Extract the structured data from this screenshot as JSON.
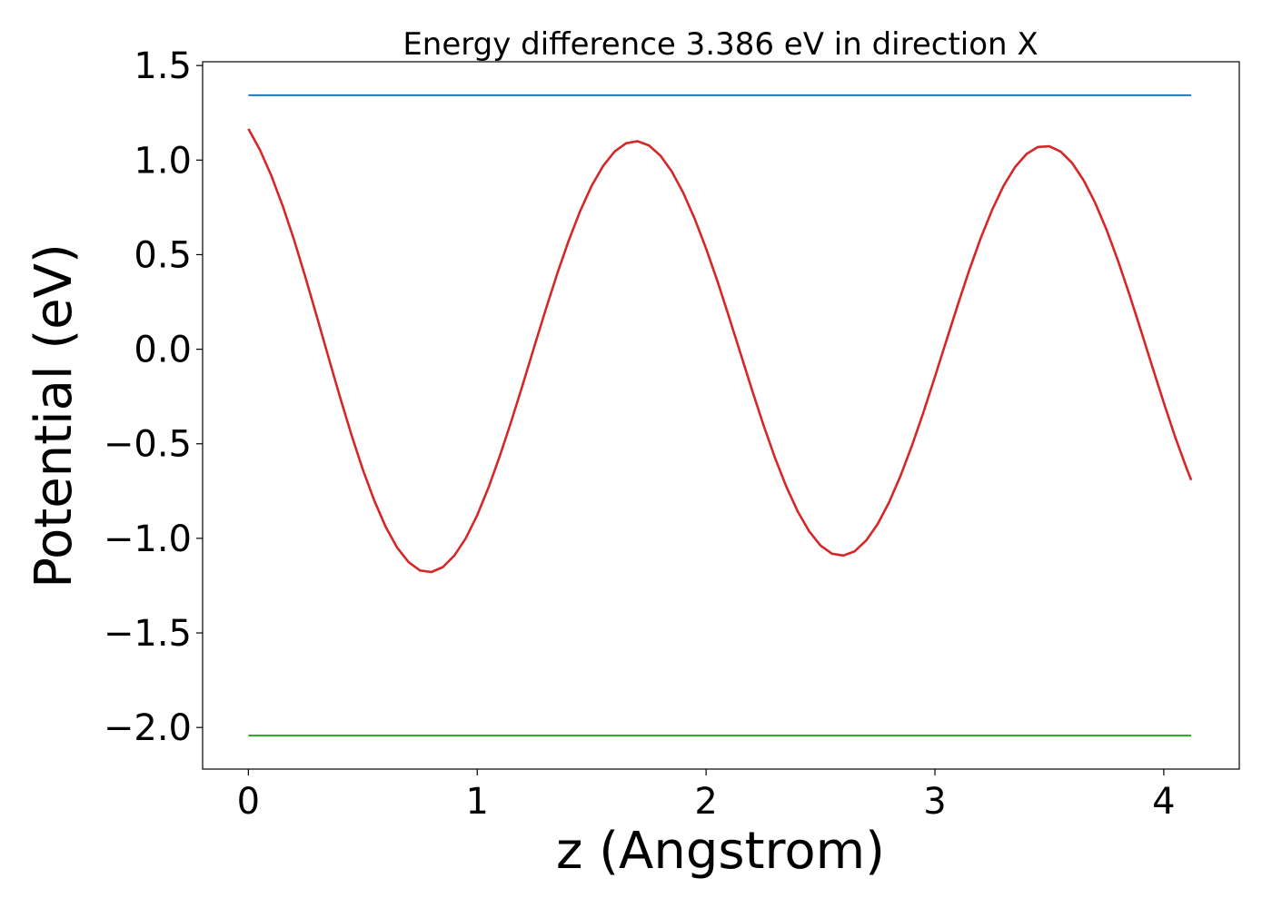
{
  "chart_data": {
    "type": "line",
    "title": "Energy difference 3.386 eV in direction X",
    "xlabel": "z (Angstrom)",
    "ylabel": "Potential (eV)",
    "xlim": [
      -0.2,
      4.33
    ],
    "ylim": [
      -2.22,
      1.52
    ],
    "xticks": [
      0,
      1,
      2,
      3,
      4
    ],
    "xtick_labels": [
      "0",
      "1",
      "2",
      "3",
      "4"
    ],
    "yticks": [
      1.5,
      1.0,
      0.5,
      0.0,
      -0.5,
      -1.0,
      -1.5,
      -2.0
    ],
    "ytick_labels": [
      "1.5",
      "1.0",
      "0.5",
      "0.0",
      "−0.5",
      "−1.0",
      "−1.5",
      "−2.0"
    ],
    "grid": false,
    "series": [
      {
        "color": "#1f77b4",
        "x": [
          0,
          4.12
        ],
        "y": [
          1.343,
          1.343
        ]
      },
      {
        "color": "#d62728",
        "x": [
          0,
          0.05,
          0.1,
          0.15,
          0.2,
          0.25,
          0.3,
          0.35,
          0.4,
          0.45,
          0.5,
          0.55,
          0.6,
          0.65,
          0.7,
          0.75,
          0.8,
          0.85,
          0.9,
          0.95,
          1.0,
          1.05,
          1.1,
          1.15,
          1.2,
          1.25,
          1.3,
          1.35,
          1.4,
          1.45,
          1.5,
          1.55,
          1.6,
          1.65,
          1.7,
          1.75,
          1.8,
          1.85,
          1.9,
          1.95,
          2.0,
          2.05,
          2.1,
          2.15,
          2.2,
          2.25,
          2.3,
          2.35,
          2.4,
          2.45,
          2.5,
          2.55,
          2.6,
          2.65,
          2.7,
          2.75,
          2.8,
          2.85,
          2.9,
          2.95,
          3.0,
          3.05,
          3.1,
          3.15,
          3.2,
          3.25,
          3.3,
          3.35,
          3.4,
          3.45,
          3.5,
          3.55,
          3.6,
          3.65,
          3.7,
          3.75,
          3.8,
          3.85,
          3.9,
          3.95,
          4.0,
          4.05,
          4.1,
          4.12
        ],
        "y": [
          1.165,
          1.055,
          0.918,
          0.757,
          0.576,
          0.378,
          0.17,
          -0.042,
          -0.251,
          -0.451,
          -0.636,
          -0.8,
          -0.939,
          -1.049,
          -1.126,
          -1.17,
          -1.178,
          -1.152,
          -1.091,
          -0.999,
          -0.877,
          -0.73,
          -0.561,
          -0.377,
          -0.183,
          0.016,
          0.212,
          0.401,
          0.575,
          0.731,
          0.864,
          0.969,
          1.045,
          1.089,
          1.1,
          1.078,
          1.024,
          0.94,
          0.828,
          0.691,
          0.533,
          0.359,
          0.172,
          -0.02,
          -0.212,
          -0.398,
          -0.571,
          -0.725,
          -0.857,
          -0.962,
          -1.038,
          -1.081,
          -1.091,
          -1.068,
          -1.011,
          -0.924,
          -0.809,
          -0.669,
          -0.509,
          -0.333,
          -0.146,
          0.045,
          0.235,
          0.418,
          0.587,
          0.737,
          0.864,
          0.963,
          1.032,
          1.069,
          1.073,
          1.044,
          0.984,
          0.893,
          0.775,
          0.632,
          0.468,
          0.289,
          0.1,
          -0.093,
          -0.283,
          -0.465,
          -0.631,
          -0.692
        ]
      },
      {
        "color": "#2ca02c",
        "x": [
          0,
          4.12
        ],
        "y": [
          -2.043,
          -2.043
        ]
      }
    ]
  }
}
